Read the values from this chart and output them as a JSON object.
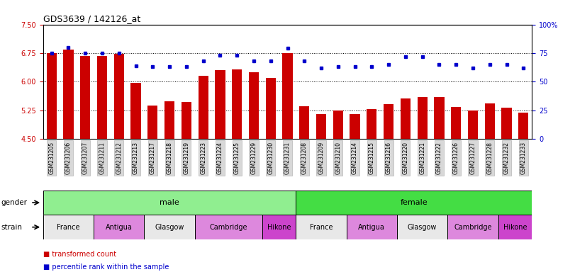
{
  "title": "GDS3639 / 142126_at",
  "samples": [
    "GSM231205",
    "GSM231206",
    "GSM231207",
    "GSM231211",
    "GSM231212",
    "GSM231213",
    "GSM231217",
    "GSM231218",
    "GSM231219",
    "GSM231223",
    "GSM231224",
    "GSM231225",
    "GSM231229",
    "GSM231230",
    "GSM231231",
    "GSM231208",
    "GSM231209",
    "GSM231210",
    "GSM231214",
    "GSM231215",
    "GSM231216",
    "GSM231220",
    "GSM231221",
    "GSM231222",
    "GSM231226",
    "GSM231227",
    "GSM231228",
    "GSM231232",
    "GSM231233"
  ],
  "bar_values": [
    6.75,
    6.85,
    6.68,
    6.68,
    6.72,
    5.97,
    5.38,
    5.48,
    5.47,
    6.15,
    6.3,
    6.32,
    6.25,
    6.1,
    6.75,
    5.35,
    5.15,
    5.25,
    5.15,
    5.28,
    5.4,
    5.55,
    5.6,
    5.6,
    5.33,
    5.25,
    5.42,
    5.32,
    5.18
  ],
  "percentile_values": [
    75,
    80,
    75,
    75,
    75,
    64,
    63,
    63,
    63,
    68,
    73,
    73,
    68,
    68,
    79,
    68,
    62,
    63,
    63,
    63,
    65,
    72,
    72,
    65,
    65,
    62,
    65,
    65,
    62
  ],
  "ylim_left": [
    4.5,
    7.5
  ],
  "ylim_right": [
    0,
    100
  ],
  "yticks_left": [
    4.5,
    5.25,
    6.0,
    6.75,
    7.5
  ],
  "yticks_right": [
    0,
    25,
    50,
    75,
    100
  ],
  "bar_color": "#cc0000",
  "dot_color": "#0000cc",
  "gender_male_color": "#90ee90",
  "gender_female_color": "#44dd44",
  "strain_labels": [
    "France",
    "Antigua",
    "Glasgow",
    "Cambridge",
    "Hikone"
  ],
  "strain_colors": [
    "#e8e8e8",
    "#dd88dd",
    "#e8e8e8",
    "#dd88dd",
    "#cc44cc"
  ],
  "male_count": 15,
  "female_count": 14,
  "male_strain_widths": [
    3,
    3,
    3,
    4,
    2
  ],
  "female_strain_widths": [
    3,
    3,
    3,
    3,
    2
  ]
}
